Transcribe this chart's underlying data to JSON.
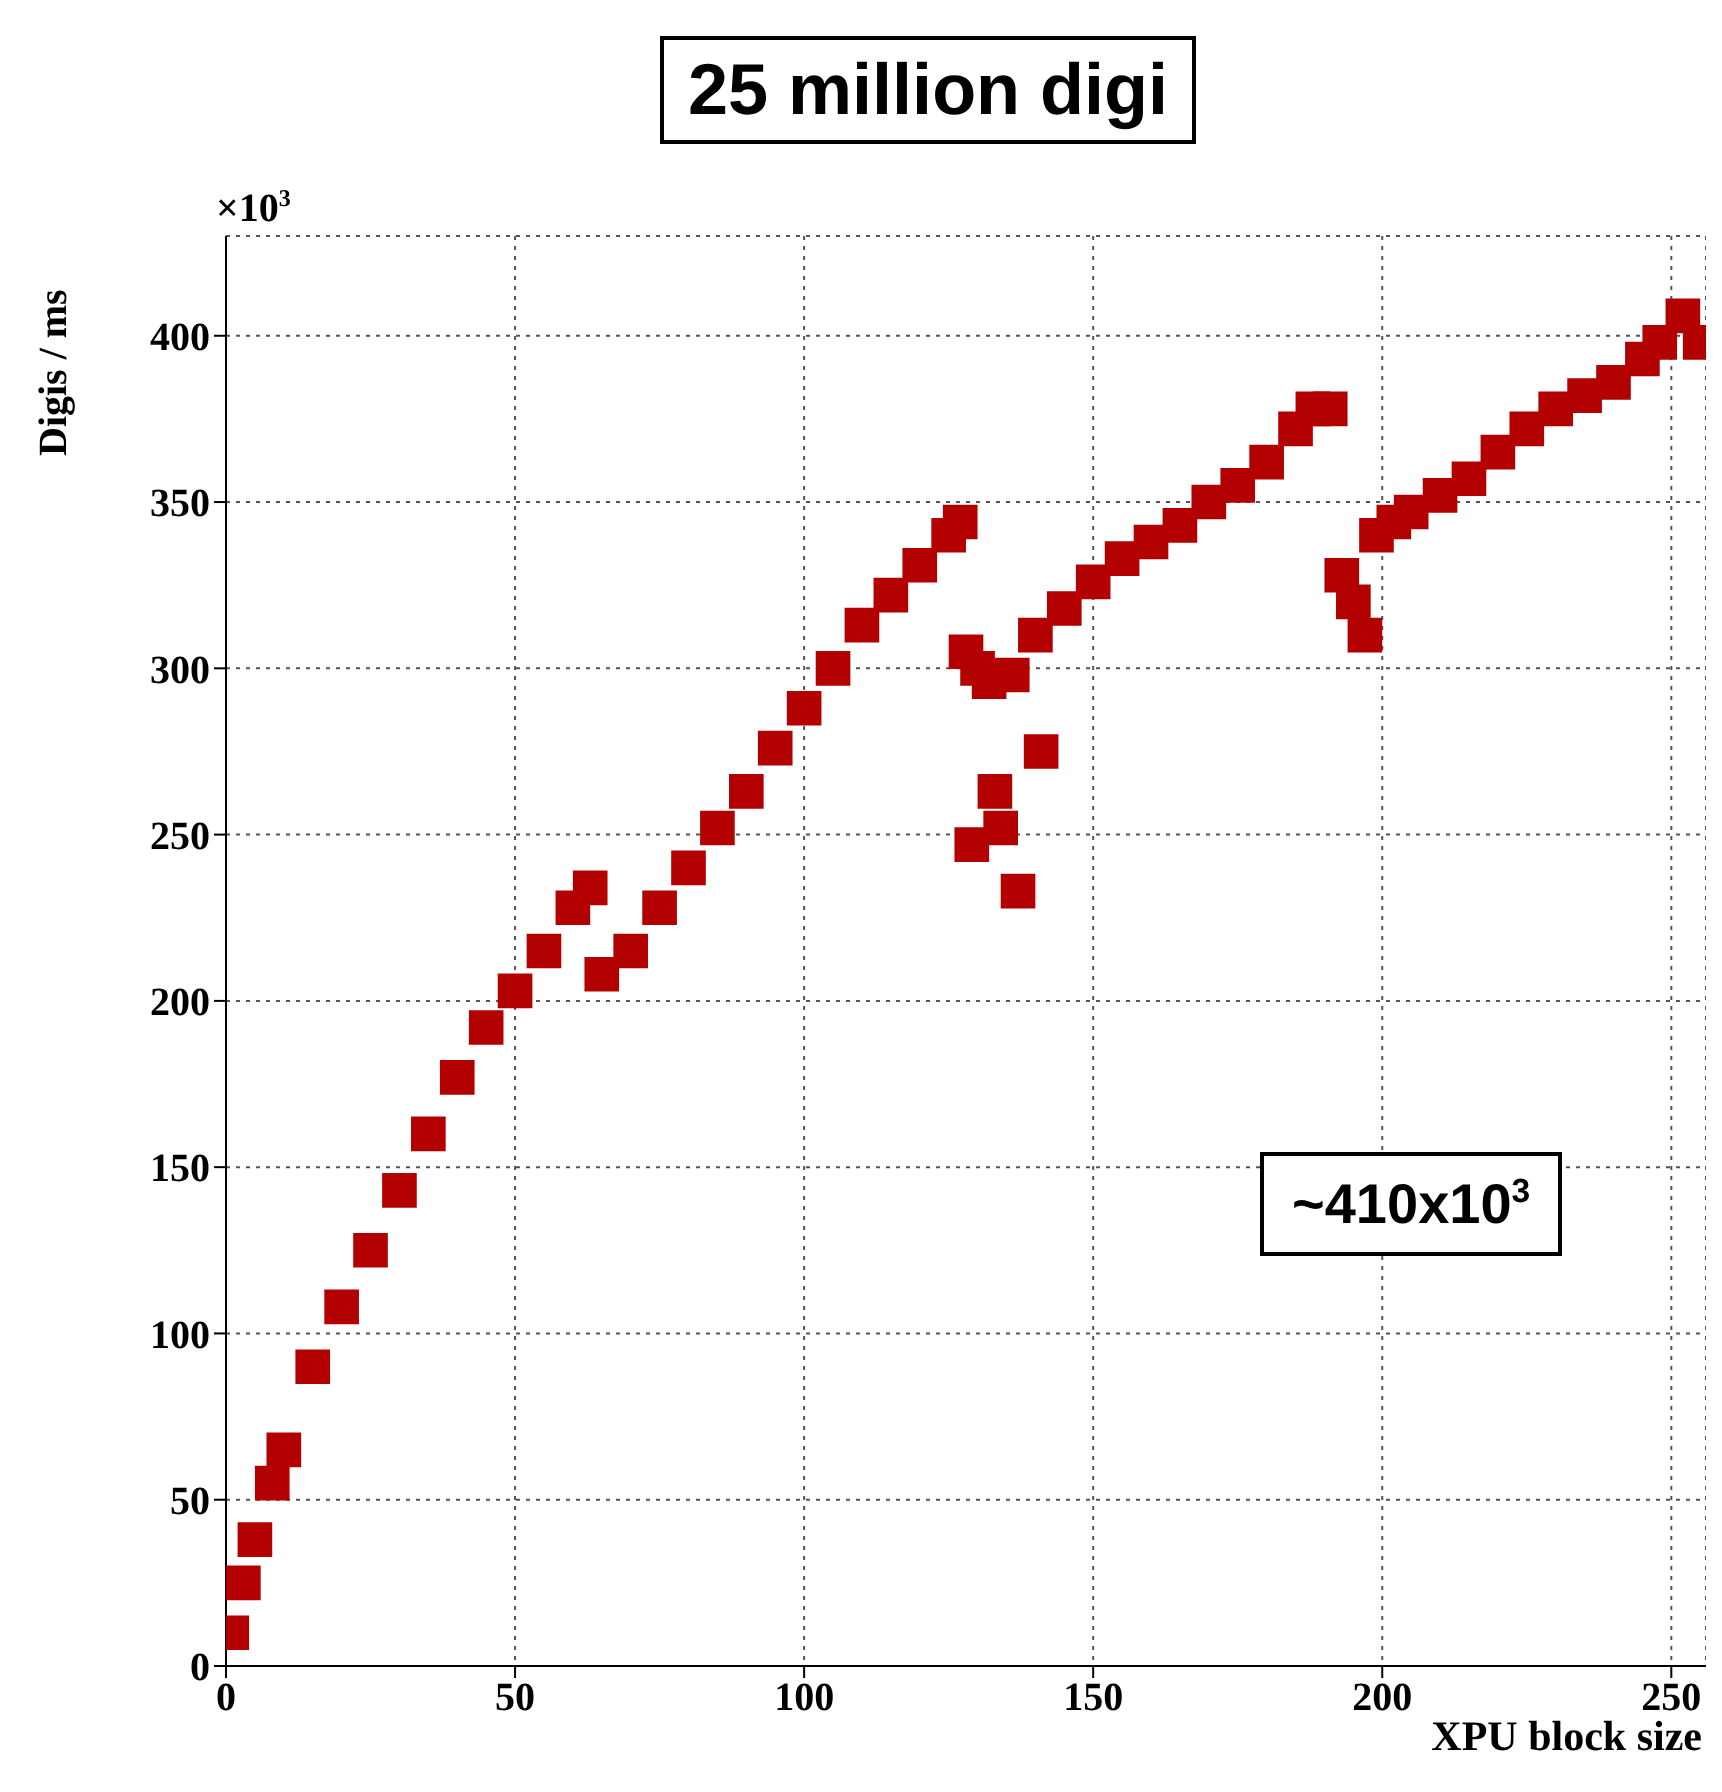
{
  "chart_data": {
    "type": "scatter",
    "title": "25 million digi",
    "xlabel": "XPU block size",
    "ylabel": "Digis / ms",
    "annotations": [
      "×10$^{3}$",
      "~410x10$^{3}$"
    ],
    "x": [
      1,
      3,
      5,
      8,
      10,
      15,
      20,
      25,
      30,
      35,
      40,
      45,
      50,
      55,
      60,
      63,
      65,
      70,
      75,
      80,
      85,
      90,
      95,
      100,
      105,
      110,
      115,
      120,
      125,
      127,
      128,
      129,
      130,
      132,
      133,
      134,
      136,
      137,
      140,
      141,
      145,
      150,
      155,
      160,
      165,
      170,
      175,
      180,
      185,
      188,
      191,
      193,
      195,
      197,
      199,
      202,
      205,
      210,
      215,
      220,
      225,
      230,
      235,
      240,
      245,
      248,
      252,
      255
    ],
    "values": [
      10,
      25,
      38,
      55,
      65,
      90,
      108,
      125,
      143,
      160,
      177,
      192,
      203,
      215,
      228,
      234,
      208,
      215,
      228,
      240,
      252,
      263,
      276,
      288,
      300,
      313,
      322,
      331,
      340,
      344,
      305,
      247,
      300,
      296,
      263,
      252,
      298,
      233,
      310,
      275,
      318,
      326,
      333,
      338,
      343,
      350,
      355,
      362,
      372,
      378,
      378,
      328,
      320,
      310,
      340,
      344,
      347,
      352,
      357,
      365,
      372,
      378,
      382,
      386,
      393,
      398,
      406,
      398
    ],
    "color": "#b30000",
    "marker": "square",
    "grid": true,
    "xlim": [
      0,
      256
    ],
    "xticks": [
      0,
      50,
      100,
      150,
      200,
      250
    ],
    "ylim": [
      0,
      430
    ],
    "yticks": [
      0,
      50,
      100,
      150,
      200,
      250,
      300,
      350,
      400
    ]
  }
}
